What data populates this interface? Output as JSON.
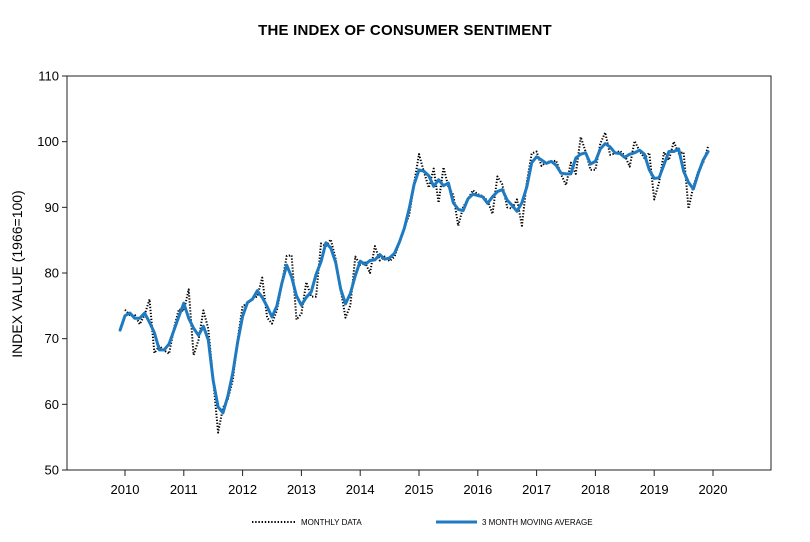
{
  "chart_data": {
    "type": "line",
    "title": "THE INDEX OF CONSUMER SENTIMENT",
    "ylabel": "INDEX VALUE (1966=100)",
    "xlabel": "",
    "ylim": [
      50,
      110
    ],
    "y_ticks": [
      "50",
      "60",
      "70",
      "80",
      "90",
      "100",
      "110"
    ],
    "x_ticks": [
      "2010",
      "2011",
      "2012",
      "2013",
      "2014",
      "2015",
      "2016",
      "2017",
      "2018",
      "2019",
      "2020"
    ],
    "grid": false,
    "legend_position": "bottom",
    "series": [
      {
        "name": "MONTHLY DATA",
        "style": "dotted",
        "color": "#000000",
        "values": [
          74.4,
          73.6,
          73.6,
          72.2,
          73.6,
          76.0,
          67.8,
          68.9,
          68.2,
          67.7,
          71.6,
          74.5,
          74.2,
          77.5,
          67.5,
          69.8,
          74.3,
          71.5,
          63.7,
          55.7,
          59.5,
          60.8,
          63.7,
          69.9,
          75.0,
          75.3,
          76.2,
          76.4,
          79.3,
          73.2,
          72.3,
          74.3,
          78.3,
          82.6,
          82.7,
          72.9,
          73.8,
          78.6,
          76.4,
          76.4,
          84.5,
          84.1,
          85.1,
          82.1,
          77.5,
          73.2,
          75.1,
          82.5,
          81.2,
          81.6,
          80.0,
          84.1,
          81.9,
          82.5,
          81.8,
          82.5,
          84.6,
          86.9,
          88.8,
          93.6,
          98.1,
          95.4,
          93.0,
          95.9,
          90.7,
          96.1,
          93.1,
          91.9,
          87.2,
          90.0,
          91.3,
          92.6,
          92.0,
          91.7,
          91.0,
          89.0,
          94.7,
          93.5,
          90.0,
          89.8,
          91.2,
          87.2,
          93.8,
          98.2,
          98.5,
          96.3,
          96.9,
          97.0,
          97.1,
          95.0,
          93.4,
          96.8,
          95.1,
          100.7,
          98.5,
          95.7,
          95.7,
          99.7,
          101.4,
          98.0,
          98.2,
          98.6,
          97.9,
          96.2,
          100.1,
          98.6,
          97.5,
          98.3,
          91.2,
          93.8,
          98.4,
          97.2,
          100.0,
          98.2,
          98.4,
          89.8,
          93.2,
          95.5,
          96.8,
          99.3
        ],
        "note": "monthly, Jan 2010 - Dec 2019"
      },
      {
        "name": "3 MONTH MOVING AVERAGE",
        "style": "solid",
        "color": "#1f7bc1",
        "values": [
          71.3,
          73.5,
          73.9,
          73.1,
          73.1,
          73.9,
          72.5,
          70.9,
          68.3,
          68.3,
          69.2,
          71.3,
          73.4,
          75.4,
          73.1,
          71.6,
          70.5,
          71.9,
          69.8,
          63.6,
          59.6,
          58.7,
          61.3,
          64.8,
          69.5,
          73.4,
          75.5,
          76.0,
          77.3,
          76.3,
          74.9,
          73.3,
          75.0,
          78.4,
          81.2,
          79.4,
          76.5,
          75.1,
          76.3,
          77.1,
          79.8,
          81.7,
          84.6,
          83.8,
          81.6,
          77.6,
          75.3,
          76.9,
          79.6,
          81.8,
          81.3,
          81.9,
          82.0,
          82.8,
          82.1,
          82.3,
          83.0,
          84.7,
          86.8,
          89.8,
          93.5,
          95.7,
          95.5,
          94.8,
          93.2,
          94.2,
          93.3,
          93.7,
          90.7,
          89.7,
          89.5,
          91.3,
          92.0,
          91.8,
          91.6,
          90.6,
          91.6,
          92.4,
          92.7,
          91.1,
          90.3,
          89.4,
          90.7,
          93.1,
          96.8,
          97.7,
          97.2,
          96.7,
          97.0,
          96.4,
          95.2,
          95.1,
          95.1,
          97.5,
          98.1,
          98.3,
          96.6,
          97.0,
          98.9,
          99.7,
          99.2,
          98.3,
          98.2,
          97.6,
          98.1,
          98.3,
          98.7,
          98.1,
          95.7,
          94.4,
          94.5,
          96.5,
          98.5,
          98.5,
          98.9,
          95.5,
          93.8,
          92.8,
          95.2,
          97.2,
          98.5
        ],
        "note": "monthly, Dec 2009 - Dec 2019"
      }
    ]
  }
}
